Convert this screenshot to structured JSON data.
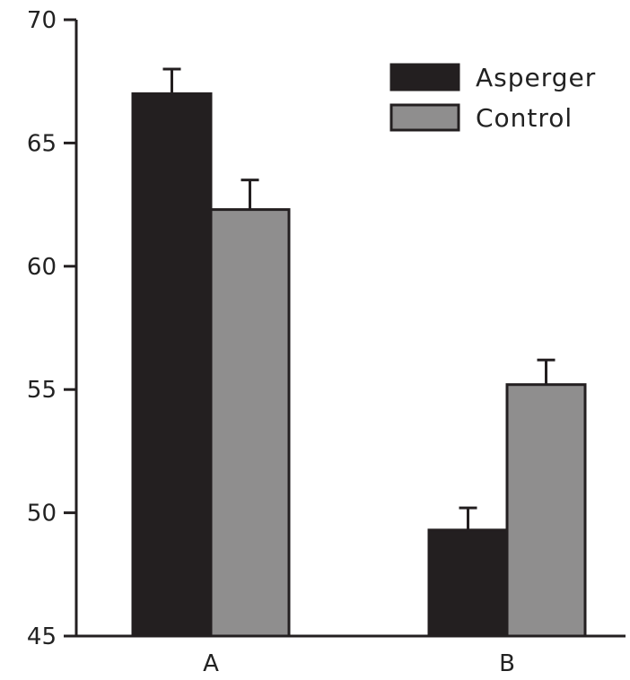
{
  "chart_data": {
    "type": "bar",
    "categories": [
      "A",
      "B"
    ],
    "series": [
      {
        "name": "Asperger",
        "color": "#231f20",
        "values": [
          67.0,
          49.3
        ],
        "errors": [
          1.0,
          0.9
        ]
      },
      {
        "name": "Control",
        "color": "#8f8e8e",
        "values": [
          62.3,
          55.2
        ],
        "errors": [
          1.2,
          1.0
        ]
      }
    ],
    "title": "",
    "xlabel": "",
    "ylabel": "",
    "ylim": [
      45,
      70
    ],
    "yticks": [
      45,
      50,
      55,
      60,
      65,
      70
    ],
    "grid": false,
    "legend_position": "top-right",
    "error_bars": "upper"
  }
}
